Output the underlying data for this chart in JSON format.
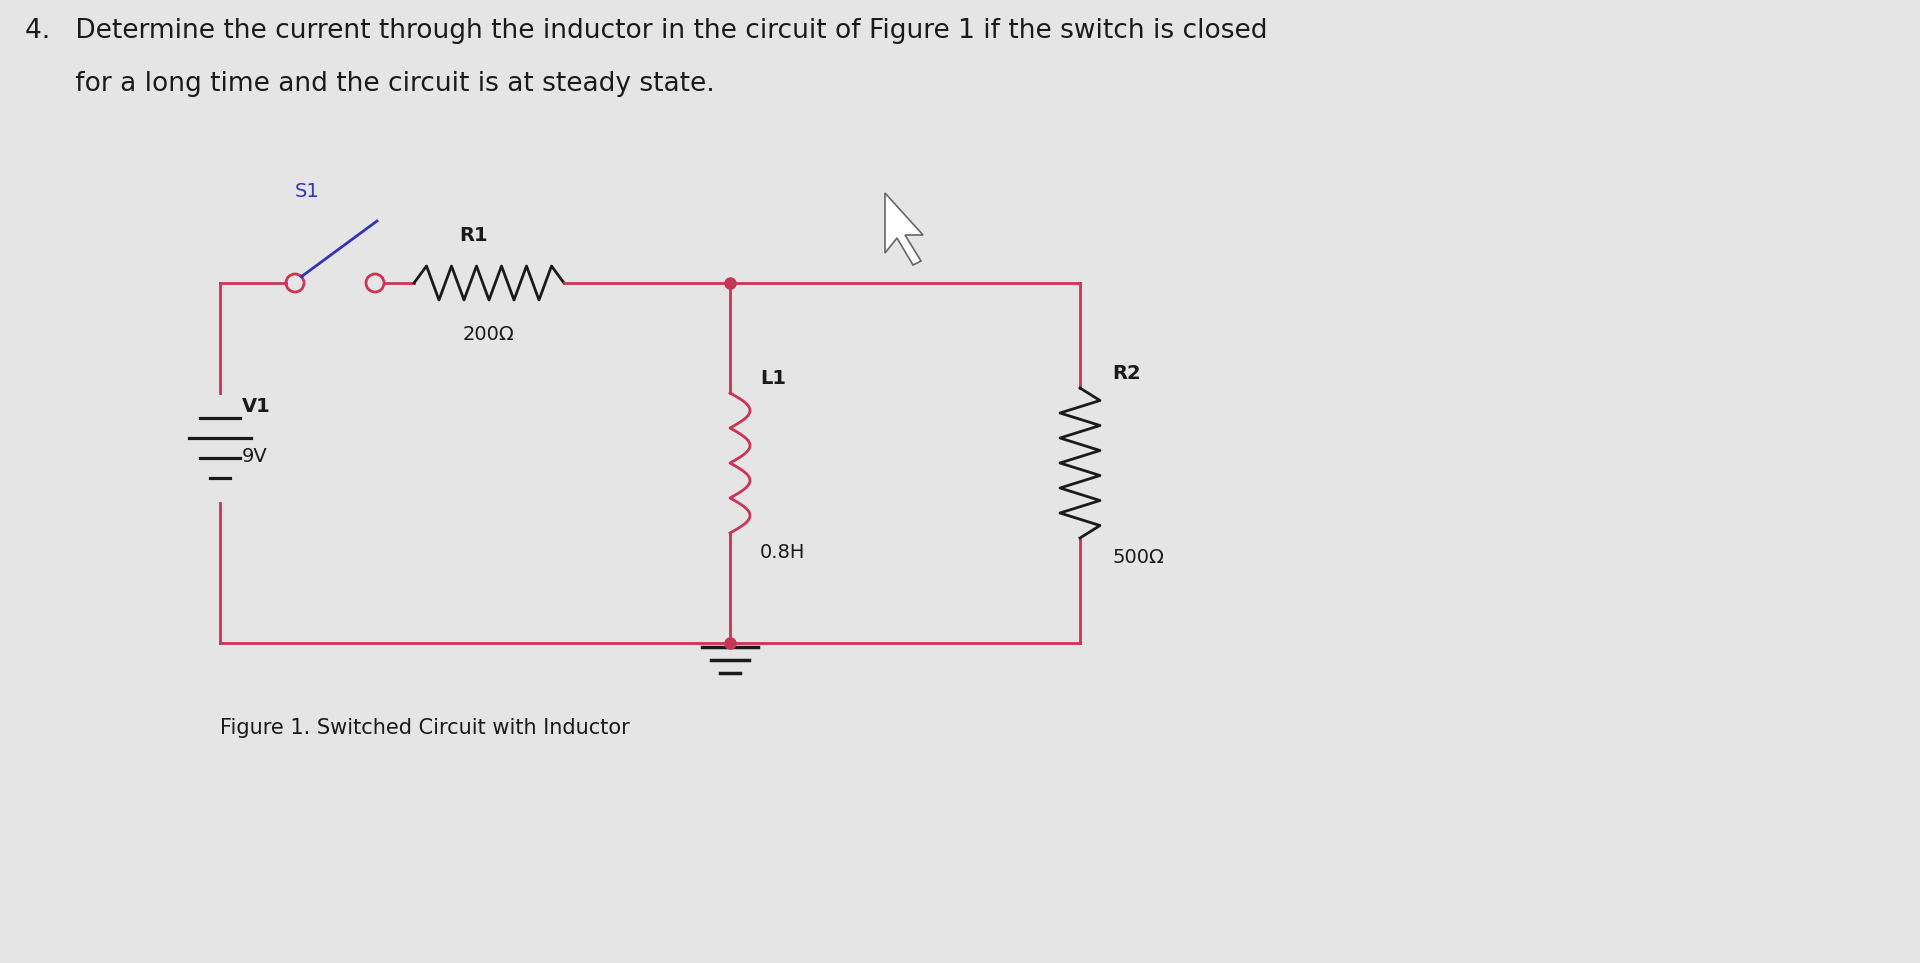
{
  "bg_color": "#e5e5e5",
  "circuit_color": "#cc3355",
  "switch_color": "#3333bb",
  "text_color": "#1a1a1a",
  "caption": "Figure 1. Switched Circuit with Inductor",
  "R1_label": "R1",
  "R1_value": "200Ω",
  "R2_label": "R2",
  "R2_value": "500Ω",
  "L1_label": "L1",
  "L1_value": "0.8H",
  "V1_label": "V1",
  "V1_value": "9V",
  "S1_label": "S1",
  "title_line1": "4.   Determine the current through the inductor in the circuit of Figure 1 if the switch is closed",
  "title_line2": "      for a long time and the circuit is at steady state."
}
